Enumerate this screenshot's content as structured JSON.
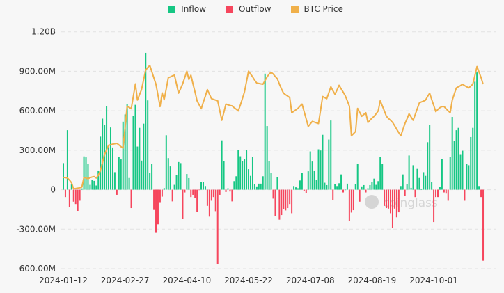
{
  "chart_data": {
    "type": "bar",
    "legend": {
      "position": "top-center",
      "items": [
        {
          "name": "Inflow",
          "color": "#16c784"
        },
        {
          "name": "Outflow",
          "color": "#f6465d"
        },
        {
          "name": "BTC Price",
          "color": "#f0b04a"
        }
      ]
    },
    "y_axis": {
      "ticks": [
        {
          "value": 1200,
          "label": "1.20B"
        },
        {
          "value": 900,
          "label": "900.00M"
        },
        {
          "value": 600,
          "label": "600.00M"
        },
        {
          "value": 300,
          "label": "300.00M"
        },
        {
          "value": 0,
          "label": "0"
        },
        {
          "value": -300,
          "label": "-300.00M"
        },
        {
          "value": -600,
          "label": "-600.00M"
        }
      ],
      "ylim": [
        -600,
        1200
      ],
      "unit": "M"
    },
    "x_axis": {
      "tick_labels": [
        {
          "index": 0,
          "label": "2024-01-12"
        },
        {
          "index": 30,
          "label": "2024-02-27"
        },
        {
          "index": 60,
          "label": "2024-04-10"
        },
        {
          "index": 90,
          "label": "2024-05-22"
        },
        {
          "index": 120,
          "label": "2024-07-08"
        },
        {
          "index": 150,
          "label": "2024-08-19"
        },
        {
          "index": 180,
          "label": "2024-10-01"
        }
      ]
    },
    "grid": "horizontal-dashed",
    "net_flow": [
      202,
      -56,
      452,
      -130,
      40,
      -91,
      -109,
      -161,
      -84,
      10,
      253,
      246,
      195,
      37,
      77,
      67,
      32,
      146,
      403,
      540,
      493,
      633,
      335,
      473,
      321,
      133,
      -39,
      251,
      230,
      517,
      572,
      649,
      89,
      -140,
      561,
      645,
      328,
      470,
      221,
      502,
      1040,
      679,
      128,
      195,
      -154,
      -328,
      -263,
      -95,
      -53,
      12,
      414,
      240,
      177,
      -89,
      37,
      109,
      210,
      202,
      -224,
      -21,
      119,
      88,
      -56,
      -39,
      -61,
      -167,
      -2,
      60,
      60,
      28,
      -123,
      -205,
      -84,
      -56,
      -163,
      -565,
      -39,
      375,
      216,
      -18,
      11,
      -14,
      -89,
      65,
      102,
      302,
      254,
      219,
      232,
      302,
      156,
      105,
      251,
      42,
      25,
      46,
      46,
      102,
      882,
      484,
      216,
      128,
      -68,
      -200,
      98,
      -228,
      -193,
      -147,
      -158,
      -140,
      -109,
      -179,
      28,
      18,
      11,
      70,
      126,
      -12,
      -25,
      140,
      291,
      214,
      146,
      75,
      307,
      298,
      417,
      53,
      35,
      381,
      526,
      -81,
      40,
      28,
      49,
      116,
      -21,
      0,
      46,
      -240,
      -174,
      -156,
      42,
      198,
      -91,
      25,
      35,
      -21,
      11,
      35,
      61,
      84,
      37,
      65,
      249,
      198,
      -123,
      -140,
      -144,
      -179,
      -289,
      -144,
      -210,
      -172,
      28,
      116,
      -47,
      42,
      260,
      14,
      186,
      -56,
      158,
      89,
      3,
      133,
      105,
      361,
      493,
      58,
      -246,
      -56,
      -56,
      23,
      232,
      -21,
      -30,
      -84,
      251,
      553,
      372,
      452,
      470,
      270,
      296,
      -84,
      196,
      186,
      400,
      470,
      821,
      891,
      28,
      -56,
      -540
    ],
    "btc_price": [
      42.6,
      42.5,
      42.4,
      41.8,
      41.1,
      39.4,
      39.5,
      39.6,
      39.7,
      39.9,
      42.6,
      42.4,
      42.2,
      42.5,
      42.7,
      42.8,
      42.4,
      43.2,
      44.4,
      46.6,
      48.9,
      50.2,
      51.5,
      51.6,
      51.8,
      51.9,
      52.0,
      51.6,
      51.1,
      50.7,
      56.5,
      62.3,
      62.0,
      61.6,
      65.0,
      68.5,
      64.0,
      65.5,
      66.9,
      69.6,
      72.3,
      73.0,
      73.6,
      71.9,
      70.1,
      68.4,
      65.3,
      62.2,
      66.0,
      64.1,
      67.1,
      70.2,
      70.4,
      70.7,
      70.9,
      68.4,
      65.9,
      67.2,
      68.5,
      70.2,
      72.0,
      69.7,
      70.9,
      68.5,
      66.2,
      63.8,
      62.7,
      61.6,
      63.4,
      65.1,
      66.9,
      65.6,
      64.4,
      64.2,
      64.0,
      63.8,
      61.1,
      58.4,
      60.6,
      62.9,
      62.7,
      62.5,
      62.4,
      61.9,
      61.5,
      61.0,
      62.6,
      64.4,
      66.2,
      69.1,
      72.0,
      71.2,
      70.4,
      69.5,
      68.7,
      68.6,
      68.5,
      68.4,
      69.4,
      70.4,
      71.2,
      71.7,
      71.2,
      70.5,
      69.9,
      68.4,
      67.1,
      65.9,
      65.5,
      65.1,
      64.7,
      60.5,
      60.9,
      61.3,
      61.7,
      62.3,
      62.9,
      60.8,
      58.8,
      56.7,
      57.4,
      58.1,
      57.9,
      57.7,
      57.5,
      61.2,
      65.0,
      64.7,
      64.4,
      66.0,
      67.7,
      66.6,
      65.6,
      66.8,
      68.1,
      67.1,
      66.2,
      65.2,
      63.8,
      62.3,
      54.1,
      54.7,
      55.3,
      61.7,
      60.6,
      59.5,
      60.0,
      60.5,
      57.8,
      58.4,
      59.0,
      59.5,
      60.2,
      61.0,
      63.8,
      62.4,
      61.0,
      59.5,
      58.9,
      58.4,
      57.8,
      56.9,
      55.9,
      55.0,
      54.1,
      55.8,
      57.5,
      58.8,
      60.2,
      59.3,
      58.4,
      60.0,
      61.6,
      63.2,
      63.5,
      63.7,
      64.0,
      65.0,
      65.9,
      64.2,
      62.5,
      60.8,
      61.4,
      61.9,
      62.2,
      62.2,
      61.6,
      61.0,
      60.5,
      64.0,
      65.7,
      67.4,
      67.7,
      68.0,
      68.4,
      68.0,
      67.7,
      67.4,
      67.9,
      68.4,
      70.8,
      73.3,
      71.8,
      70.2,
      68.4
    ]
  },
  "watermark": "coinglass"
}
